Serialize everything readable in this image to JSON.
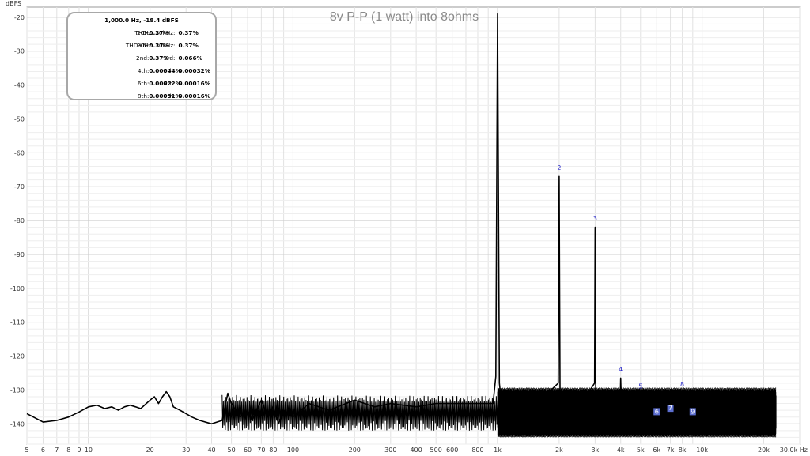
{
  "chart_data": {
    "type": "line",
    "title": "8v P-P (1 watt) into 8ohms",
    "ylabel": "dBFS",
    "xunit": "Hz",
    "xscale": "log",
    "xlim": [
      5,
      30000
    ],
    "ylim": [
      -146,
      -17
    ],
    "grid": true,
    "x_ticks": [
      {
        "v": 5,
        "label": "5"
      },
      {
        "v": 6,
        "label": "6"
      },
      {
        "v": 7,
        "label": "7"
      },
      {
        "v": 8,
        "label": "8"
      },
      {
        "v": 9,
        "label": "9"
      },
      {
        "v": 10,
        "label": "10"
      },
      {
        "v": 20,
        "label": "20"
      },
      {
        "v": 30,
        "label": "30"
      },
      {
        "v": 40,
        "label": "40"
      },
      {
        "v": 50,
        "label": "50"
      },
      {
        "v": 60,
        "label": "60"
      },
      {
        "v": 70,
        "label": "70"
      },
      {
        "v": 80,
        "label": "80"
      },
      {
        "v": 100,
        "label": "100"
      },
      {
        "v": 200,
        "label": "200"
      },
      {
        "v": 300,
        "label": "300"
      },
      {
        "v": 400,
        "label": "400"
      },
      {
        "v": 500,
        "label": "500"
      },
      {
        "v": 600,
        "label": "600"
      },
      {
        "v": 800,
        "label": "800"
      },
      {
        "v": 1000,
        "label": "1k"
      },
      {
        "v": 2000,
        "label": "2k"
      },
      {
        "v": 3000,
        "label": "3k"
      },
      {
        "v": 4000,
        "label": "4k"
      },
      {
        "v": 5000,
        "label": "5k"
      },
      {
        "v": 6000,
        "label": "6k"
      },
      {
        "v": 7000,
        "label": "7k"
      },
      {
        "v": 8000,
        "label": "8k"
      },
      {
        "v": 10000,
        "label": "10k"
      },
      {
        "v": 20000,
        "label": "20k"
      },
      {
        "v": 30000,
        "label": "30.0k Hz"
      }
    ],
    "y_ticks": [
      -20,
      -30,
      -40,
      -50,
      -60,
      -70,
      -80,
      -90,
      -100,
      -110,
      -120,
      -130,
      -140
    ],
    "series": [
      {
        "points": [
          [
            5,
            -137
          ],
          [
            6,
            -139.5
          ],
          [
            7,
            -139
          ],
          [
            8,
            -138
          ],
          [
            9,
            -136.5
          ],
          [
            10,
            -135
          ],
          [
            11,
            -134.5
          ],
          [
            12,
            -135.5
          ],
          [
            13,
            -135
          ],
          [
            14,
            -136
          ],
          [
            15,
            -135
          ],
          [
            16,
            -134.5
          ],
          [
            17,
            -135
          ],
          [
            18,
            -135.5
          ],
          [
            20,
            -133
          ],
          [
            21,
            -132
          ],
          [
            22,
            -134
          ],
          [
            23,
            -132
          ],
          [
            24,
            -130.5
          ],
          [
            25,
            -132
          ],
          [
            26,
            -135
          ],
          [
            28,
            -136
          ],
          [
            30,
            -137
          ],
          [
            32,
            -138
          ],
          [
            35,
            -139
          ],
          [
            40,
            -140
          ],
          [
            45,
            -139
          ],
          [
            48,
            -131
          ],
          [
            50,
            -134
          ],
          [
            55,
            -138
          ],
          [
            60,
            -136
          ],
          [
            63,
            -139
          ],
          [
            70,
            -133
          ],
          [
            75,
            -138
          ],
          [
            80,
            -135
          ],
          [
            85,
            -140
          ],
          [
            90,
            -136
          ],
          [
            100,
            -138
          ],
          [
            120,
            -134
          ],
          [
            150,
            -136
          ],
          [
            200,
            -133
          ],
          [
            250,
            -135
          ],
          [
            300,
            -134
          ],
          [
            400,
            -135
          ],
          [
            500,
            -134
          ],
          [
            600,
            -134
          ],
          [
            800,
            -134
          ],
          [
            950,
            -134
          ],
          [
            980,
            -126
          ],
          [
            1000,
            -19
          ],
          [
            1020,
            -128
          ],
          [
            1050,
            -135
          ],
          [
            1500,
            -135
          ],
          [
            1980,
            -128
          ],
          [
            2000,
            -67
          ],
          [
            2020,
            -130
          ],
          [
            2500,
            -135
          ],
          [
            2980,
            -128
          ],
          [
            3000,
            -82
          ],
          [
            3020,
            -130
          ],
          [
            3500,
            -135
          ],
          [
            3980,
            -132
          ],
          [
            4000,
            -126.5
          ],
          [
            4020,
            -132
          ],
          [
            5000,
            -135
          ],
          [
            10000,
            -135
          ],
          [
            20000,
            -135
          ],
          [
            23000,
            -135
          ]
        ]
      }
    ],
    "noise_floor": {
      "from": 1000,
      "to": 23000,
      "upper": -130.5,
      "lower": -141
    },
    "annotations": [
      {
        "text": "2",
        "x": 2000,
        "y": -65
      },
      {
        "text": "3",
        "x": 3000,
        "y": -80
      },
      {
        "text": "4",
        "x": 4000,
        "y": -124.5
      },
      {
        "text": "5",
        "x": 5000,
        "y": -129.5
      },
      {
        "text": "6",
        "x": 6000,
        "y": -137
      },
      {
        "text": "7",
        "x": 7000,
        "y": -136
      },
      {
        "text": "8",
        "x": 8000,
        "y": -129
      },
      {
        "text": "9",
        "x": 9000,
        "y": -137
      }
    ]
  },
  "stats_box": {
    "header": "1,000.0 Hz, -18.4 dBFS",
    "rows": [
      {
        "l1": "THD:",
        "v1": "0.37%",
        "l2": "20Hz..20kHz:",
        "v2": "0.37%"
      },
      {
        "l1": "THD+N:",
        "v1": "0.37%",
        "l2": "20Hz..20kHz:",
        "v2": "0.37%"
      },
      {
        "l1": "2nd:",
        "v1": "0.37%",
        "l2": "3rd:",
        "v2": "0.066%"
      },
      {
        "l1": "4th:",
        "v1": "0.00044%",
        "l2": "5th:",
        "v2": "0.00032%"
      },
      {
        "l1": "6th:",
        "v1": "0.00022%",
        "l2": "7th:",
        "v2": "0.00016%"
      },
      {
        "l1": "8th:",
        "v1": "0.00031%",
        "l2": "9th:",
        "v2": "0.00016%"
      }
    ]
  }
}
